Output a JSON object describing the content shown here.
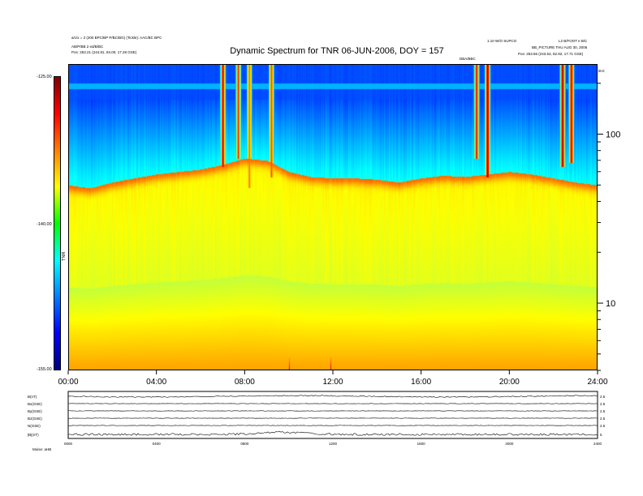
{
  "header": {
    "left_line1": "a/c/x = 2 (200 BPC/BP P/BC/BG) (Tickle): AAC/BC BPC",
    "left_line2": "AB/P/BB 2 ed/B/BC",
    "left_line3": "Pos:  253.21 (244.81, 84.00, 17.28 GSE)",
    "center_title": "Dynamic Spectrum for TNR 06-JUN-2006, DOY = 157",
    "right_line1": "1.10 W/O SUPCO",
    "right_line1b": "L2 B/FOOT e B/C",
    "right_line2": "BB_PICTURE THU AUG 30, 2006",
    "right_line3": "Pos:  253.56 (243.53, 82.92, 17.71 GSE)",
    "marker_label": "DBA/BBC",
    "corner_label": "kHz"
  },
  "chart_data": {
    "type": "heatmap",
    "title": "Dynamic Spectrum for TNR 06-JUN-2006, DOY = 157",
    "x_ticks": [
      "00:00",
      "04:00",
      "08:00",
      "12:00",
      "16:00",
      "20:00",
      "24:00"
    ],
    "x_range_hours": [
      0,
      24
    ],
    "y_ticks": [
      "100",
      "10"
    ],
    "y_scale": "log",
    "y_range_khz": [
      4,
      260
    ],
    "colorbar": {
      "ticks": [
        "-125.00",
        "-140.00",
        "-155.00"
      ],
      "range": [
        -155,
        -125
      ],
      "label": "TNR",
      "colors": [
        "#800000",
        "#ff0000",
        "#ff8000",
        "#ffff00",
        "#00ff00",
        "#00ffff",
        "#0080ff",
        "#0000ff",
        "#000080"
      ]
    },
    "band_edge_khz": [
      [
        0,
        50
      ],
      [
        1,
        48
      ],
      [
        2,
        52
      ],
      [
        3,
        55
      ],
      [
        4,
        58
      ],
      [
        5,
        60
      ],
      [
        6,
        62
      ],
      [
        7,
        66
      ],
      [
        8,
        72
      ],
      [
        9,
        70
      ],
      [
        10,
        60
      ],
      [
        11,
        56
      ],
      [
        12,
        55
      ],
      [
        13,
        55
      ],
      [
        14,
        54
      ],
      [
        15,
        52
      ],
      [
        16,
        55
      ],
      [
        17,
        57
      ],
      [
        18,
        56
      ],
      [
        19,
        58
      ],
      [
        20,
        60
      ],
      [
        21,
        58
      ],
      [
        22,
        55
      ],
      [
        23,
        52
      ],
      [
        24,
        50
      ]
    ],
    "bursts": [
      {
        "time_h": 7.0,
        "f_low_khz": 80,
        "intensity_db": -128
      },
      {
        "time_h": 7.7,
        "f_low_khz": 90,
        "intensity_db": -130
      },
      {
        "time_h": 8.2,
        "f_low_khz": 60,
        "intensity_db": -132
      },
      {
        "time_h": 9.2,
        "f_low_khz": 70,
        "intensity_db": -131
      },
      {
        "time_h": 18.5,
        "f_low_khz": 90,
        "intensity_db": -129
      },
      {
        "time_h": 19.0,
        "f_low_khz": 70,
        "intensity_db": -126
      },
      {
        "time_h": 22.4,
        "f_low_khz": 80,
        "intensity_db": -127
      },
      {
        "time_h": 22.8,
        "f_low_khz": 85,
        "intensity_db": -128
      }
    ],
    "lf_spikes": [
      {
        "time_h": 10.0,
        "intensity_db": -126
      },
      {
        "time_h": 11.9,
        "intensity_db": -126
      },
      {
        "time_h": 17.8,
        "intensity_db": -140
      }
    ]
  },
  "b_panel": {
    "left_labels": [
      "B(nT)",
      "Bx(GSE)",
      "By(GSE)",
      "Bz(GSE)",
      "N(GSE)",
      "|B|(nT)"
    ],
    "right_labels": [
      "2.5",
      "2.5",
      "2.5",
      "2.5",
      "2.5",
      "5"
    ],
    "x_ticks": [
      "0000",
      "0400",
      "0800",
      "1200",
      "1600",
      "2000",
      "2400"
    ],
    "bottom_label": "Moise:  aHB"
  }
}
